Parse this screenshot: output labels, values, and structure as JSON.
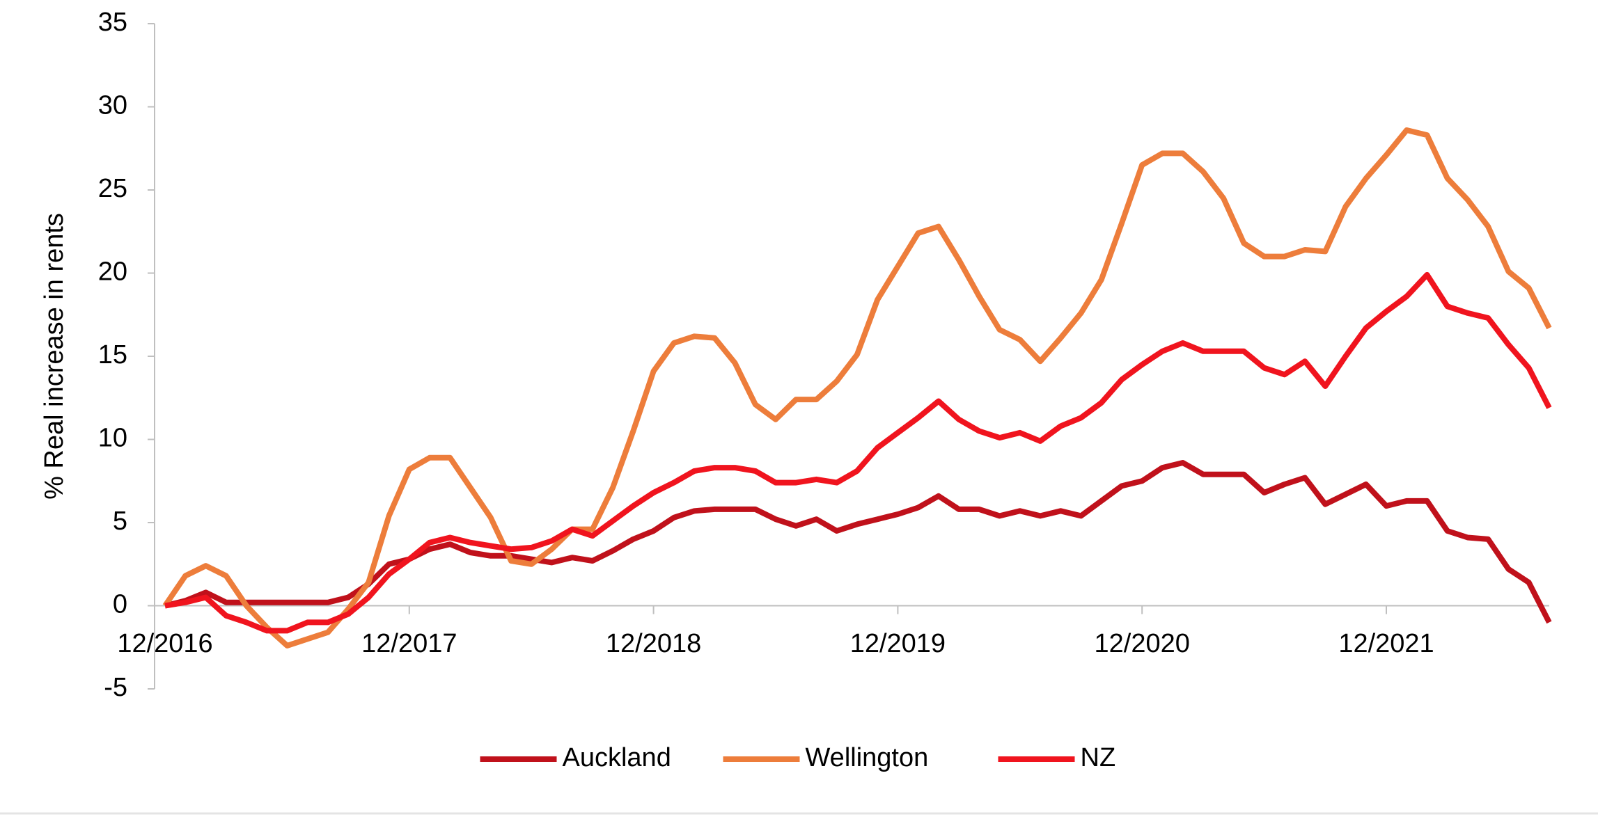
{
  "chart_data": {
    "type": "line",
    "y_label": "% Real increase in rents",
    "categories": [
      "12/2016",
      null,
      null,
      null,
      null,
      null,
      null,
      null,
      null,
      null,
      null,
      null,
      "12/2017",
      null,
      null,
      null,
      null,
      null,
      null,
      null,
      null,
      null,
      null,
      null,
      "12/2018",
      null,
      null,
      null,
      null,
      null,
      null,
      null,
      null,
      null,
      null,
      null,
      "12/2019",
      null,
      null,
      null,
      null,
      null,
      null,
      null,
      null,
      null,
      null,
      null,
      "12/2020",
      null,
      null,
      null,
      null,
      null,
      null,
      null,
      null,
      null,
      null,
      null,
      "12/2021",
      null,
      null,
      null,
      null,
      null,
      null,
      null,
      null
    ],
    "series": [
      {
        "name": "Auckland",
        "color": "#c0111b",
        "values": [
          0,
          0.3,
          0.8,
          0.2,
          0.2,
          0.2,
          0.2,
          0.2,
          0.2,
          0.5,
          1.3,
          2.5,
          2.8,
          3.4,
          3.7,
          3.2,
          3.0,
          3.0,
          2.8,
          2.6,
          2.9,
          2.7,
          3.3,
          4.0,
          4.5,
          5.3,
          5.7,
          5.8,
          5.8,
          5.8,
          5.2,
          4.8,
          5.2,
          4.5,
          4.9,
          5.2,
          5.5,
          5.9,
          6.6,
          5.8,
          5.8,
          5.4,
          5.7,
          5.4,
          5.7,
          5.4,
          6.3,
          7.2,
          7.5,
          8.3,
          8.6,
          7.9,
          7.9,
          7.9,
          6.8,
          7.3,
          7.7,
          6.1,
          6.7,
          7.3,
          6.0,
          6.3,
          6.3,
          4.5,
          4.1,
          4.0,
          2.2,
          1.4,
          -1.0
        ]
      },
      {
        "name": "Wellington",
        "color": "#ed7d3b",
        "values": [
          0,
          1.8,
          2.4,
          1.8,
          0,
          -1.3,
          -2.4,
          -2.0,
          -1.6,
          -0.2,
          1.4,
          5.4,
          8.2,
          8.9,
          8.9,
          7.1,
          5.3,
          2.7,
          2.5,
          3.4,
          4.6,
          4.6,
          7.1,
          10.5,
          14.1,
          15.8,
          16.2,
          16.1,
          14.6,
          12.1,
          11.2,
          12.4,
          12.4,
          13.5,
          15.1,
          18.4,
          20.4,
          22.4,
          22.8,
          20.8,
          18.6,
          16.6,
          16.0,
          14.7,
          16.1,
          17.6,
          19.6,
          23.0,
          26.5,
          27.2,
          27.2,
          26.1,
          24.5,
          21.8,
          21.0,
          21.0,
          21.4,
          21.3,
          24.0,
          25.7,
          27.1,
          28.6,
          28.3,
          25.7,
          24.4,
          22.8,
          20.1,
          19.1,
          16.7
        ]
      },
      {
        "name": "NZ",
        "color": "#f0141e",
        "values": [
          0,
          0.2,
          0.5,
          -0.6,
          -1.0,
          -1.5,
          -1.5,
          -1.0,
          -1.0,
          -0.5,
          0.5,
          1.9,
          2.8,
          3.8,
          4.1,
          3.8,
          3.6,
          3.4,
          3.5,
          3.9,
          4.6,
          4.2,
          5.1,
          6.0,
          6.8,
          7.4,
          8.1,
          8.3,
          8.3,
          8.1,
          7.4,
          7.4,
          7.6,
          7.4,
          8.1,
          9.5,
          10.4,
          11.3,
          12.3,
          11.2,
          10.5,
          10.1,
          10.4,
          9.9,
          10.8,
          11.3,
          12.2,
          13.6,
          14.5,
          15.3,
          15.8,
          15.3,
          15.3,
          15.3,
          14.3,
          13.9,
          14.7,
          13.2,
          15.0,
          16.7,
          17.7,
          18.6,
          19.9,
          18.0,
          17.6,
          17.3,
          15.7,
          14.3,
          11.9
        ]
      }
    ],
    "ylim": [
      -5,
      35
    ],
    "yticks": [
      -5,
      0,
      5,
      10,
      15,
      20,
      25,
      30,
      35
    ],
    "grid": false,
    "legend": "bottom"
  }
}
